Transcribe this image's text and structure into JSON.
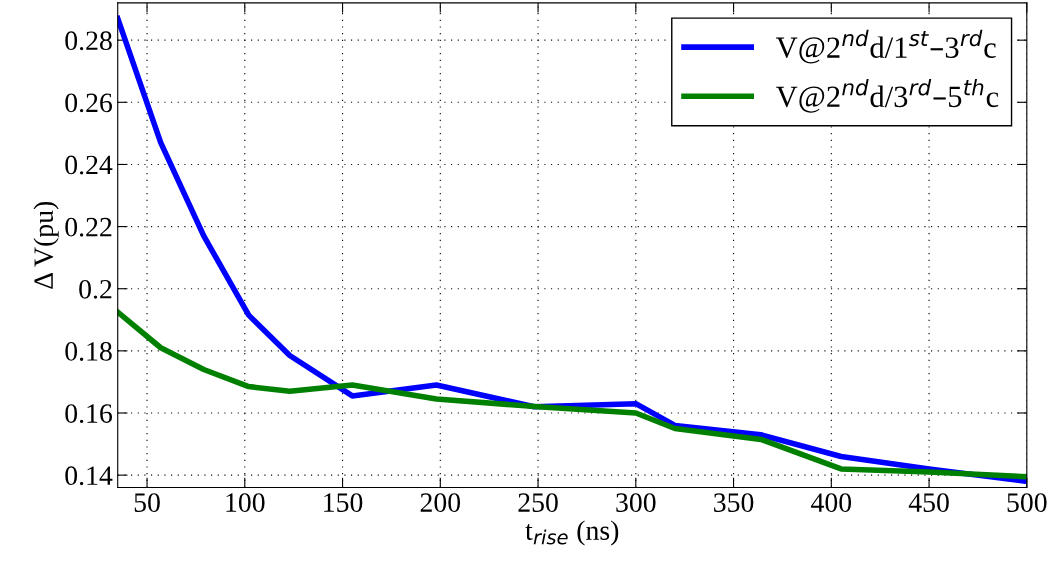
{
  "chart_data": {
    "type": "line",
    "xlabel": "t$_{rise}$ (ns)",
    "ylabel": "Δ V(pu)",
    "xlim": [
      35,
      500
    ],
    "xticks": [
      50,
      100,
      150,
      200,
      250,
      300,
      350,
      400,
      450,
      500
    ],
    "ylim": [
      0.136,
      0.292
    ],
    "yticks": [
      0.14,
      0.16,
      0.18,
      0.2,
      0.22,
      0.24,
      0.26,
      0.28
    ],
    "grid": true,
    "legend": "top right",
    "line_style": "solid",
    "marker": "none",
    "series": [
      {
        "name": "V@2$^{nd}$d/1$^{st}$–3$^{rd}$c",
        "color": "#0000ff",
        "x": [
          35,
          57,
          79,
          102,
          123,
          155,
          198,
          248,
          300,
          320,
          364,
          405,
          450,
          500
        ],
        "values": [
          0.287,
          0.247,
          0.217,
          0.1915,
          0.1785,
          0.1655,
          0.169,
          0.162,
          0.163,
          0.156,
          0.153,
          0.146,
          0.142,
          0.138
        ]
      },
      {
        "name": "V@2$^{nd}$d/3$^{rd}$–5$^{th}$c",
        "color": "#008000",
        "x": [
          35,
          57,
          79,
          102,
          123,
          155,
          198,
          250,
          300,
          320,
          364,
          405,
          450,
          500
        ],
        "values": [
          0.1925,
          0.181,
          0.174,
          0.1685,
          0.167,
          0.169,
          0.1645,
          0.162,
          0.16,
          0.155,
          0.1515,
          0.142,
          0.141,
          0.1395
        ]
      }
    ]
  }
}
